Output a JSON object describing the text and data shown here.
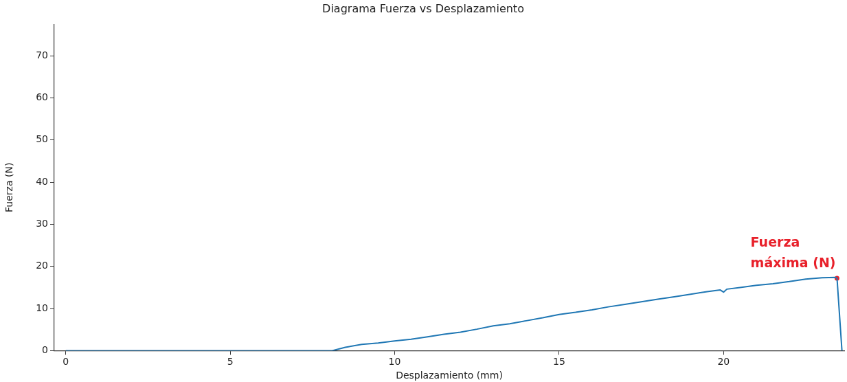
{
  "chart_data": {
    "type": "line",
    "title": "Diagrama Fuerza vs Desplazamiento",
    "xlabel": "Desplazamiento (mm)",
    "ylabel": "Fuerza (N)",
    "xlim": [
      -0.35,
      23.67
    ],
    "xticks": [
      0,
      5,
      10,
      15,
      20
    ],
    "ylim": [
      0,
      77.5
    ],
    "yticks": [
      0,
      10,
      20,
      30,
      40,
      50,
      60,
      70
    ],
    "grid": false,
    "legend": false,
    "marker": "none",
    "line_style": "solid",
    "annotations": [
      {
        "text": "Fuerza\nmáxima (N)",
        "x": 23.45,
        "y": 17.2
      }
    ],
    "series": [
      {
        "color": "#1f77b4",
        "x": [
          0,
          8.1,
          8.5,
          9,
          9.5,
          10,
          10.5,
          11,
          11.5,
          12,
          12.5,
          13,
          13.5,
          14,
          14.5,
          15,
          15.5,
          16,
          16.5,
          17,
          17.5,
          18,
          18.5,
          19,
          19.5,
          19.9,
          20,
          20.1,
          20.5,
          21,
          21.5,
          22,
          22.5,
          23,
          23.4,
          23.45,
          23.6
        ],
        "values": [
          0,
          0,
          0.8,
          1.5,
          1.8,
          2.3,
          2.7,
          3.3,
          3.9,
          4.4,
          5.1,
          5.9,
          6.4,
          7.1,
          7.8,
          8.6,
          9.1,
          9.7,
          10.4,
          11,
          11.6,
          12.2,
          12.8,
          13.4,
          14,
          14.4,
          13.9,
          14.6,
          15,
          15.5,
          15.9,
          16.4,
          17,
          17.3,
          17.4,
          17.2,
          0
        ]
      },
      {
        "type": "scatter",
        "color": "#e8202a",
        "marker": "circle",
        "x": [
          23.45
        ],
        "values": [
          17.2
        ]
      }
    ]
  }
}
